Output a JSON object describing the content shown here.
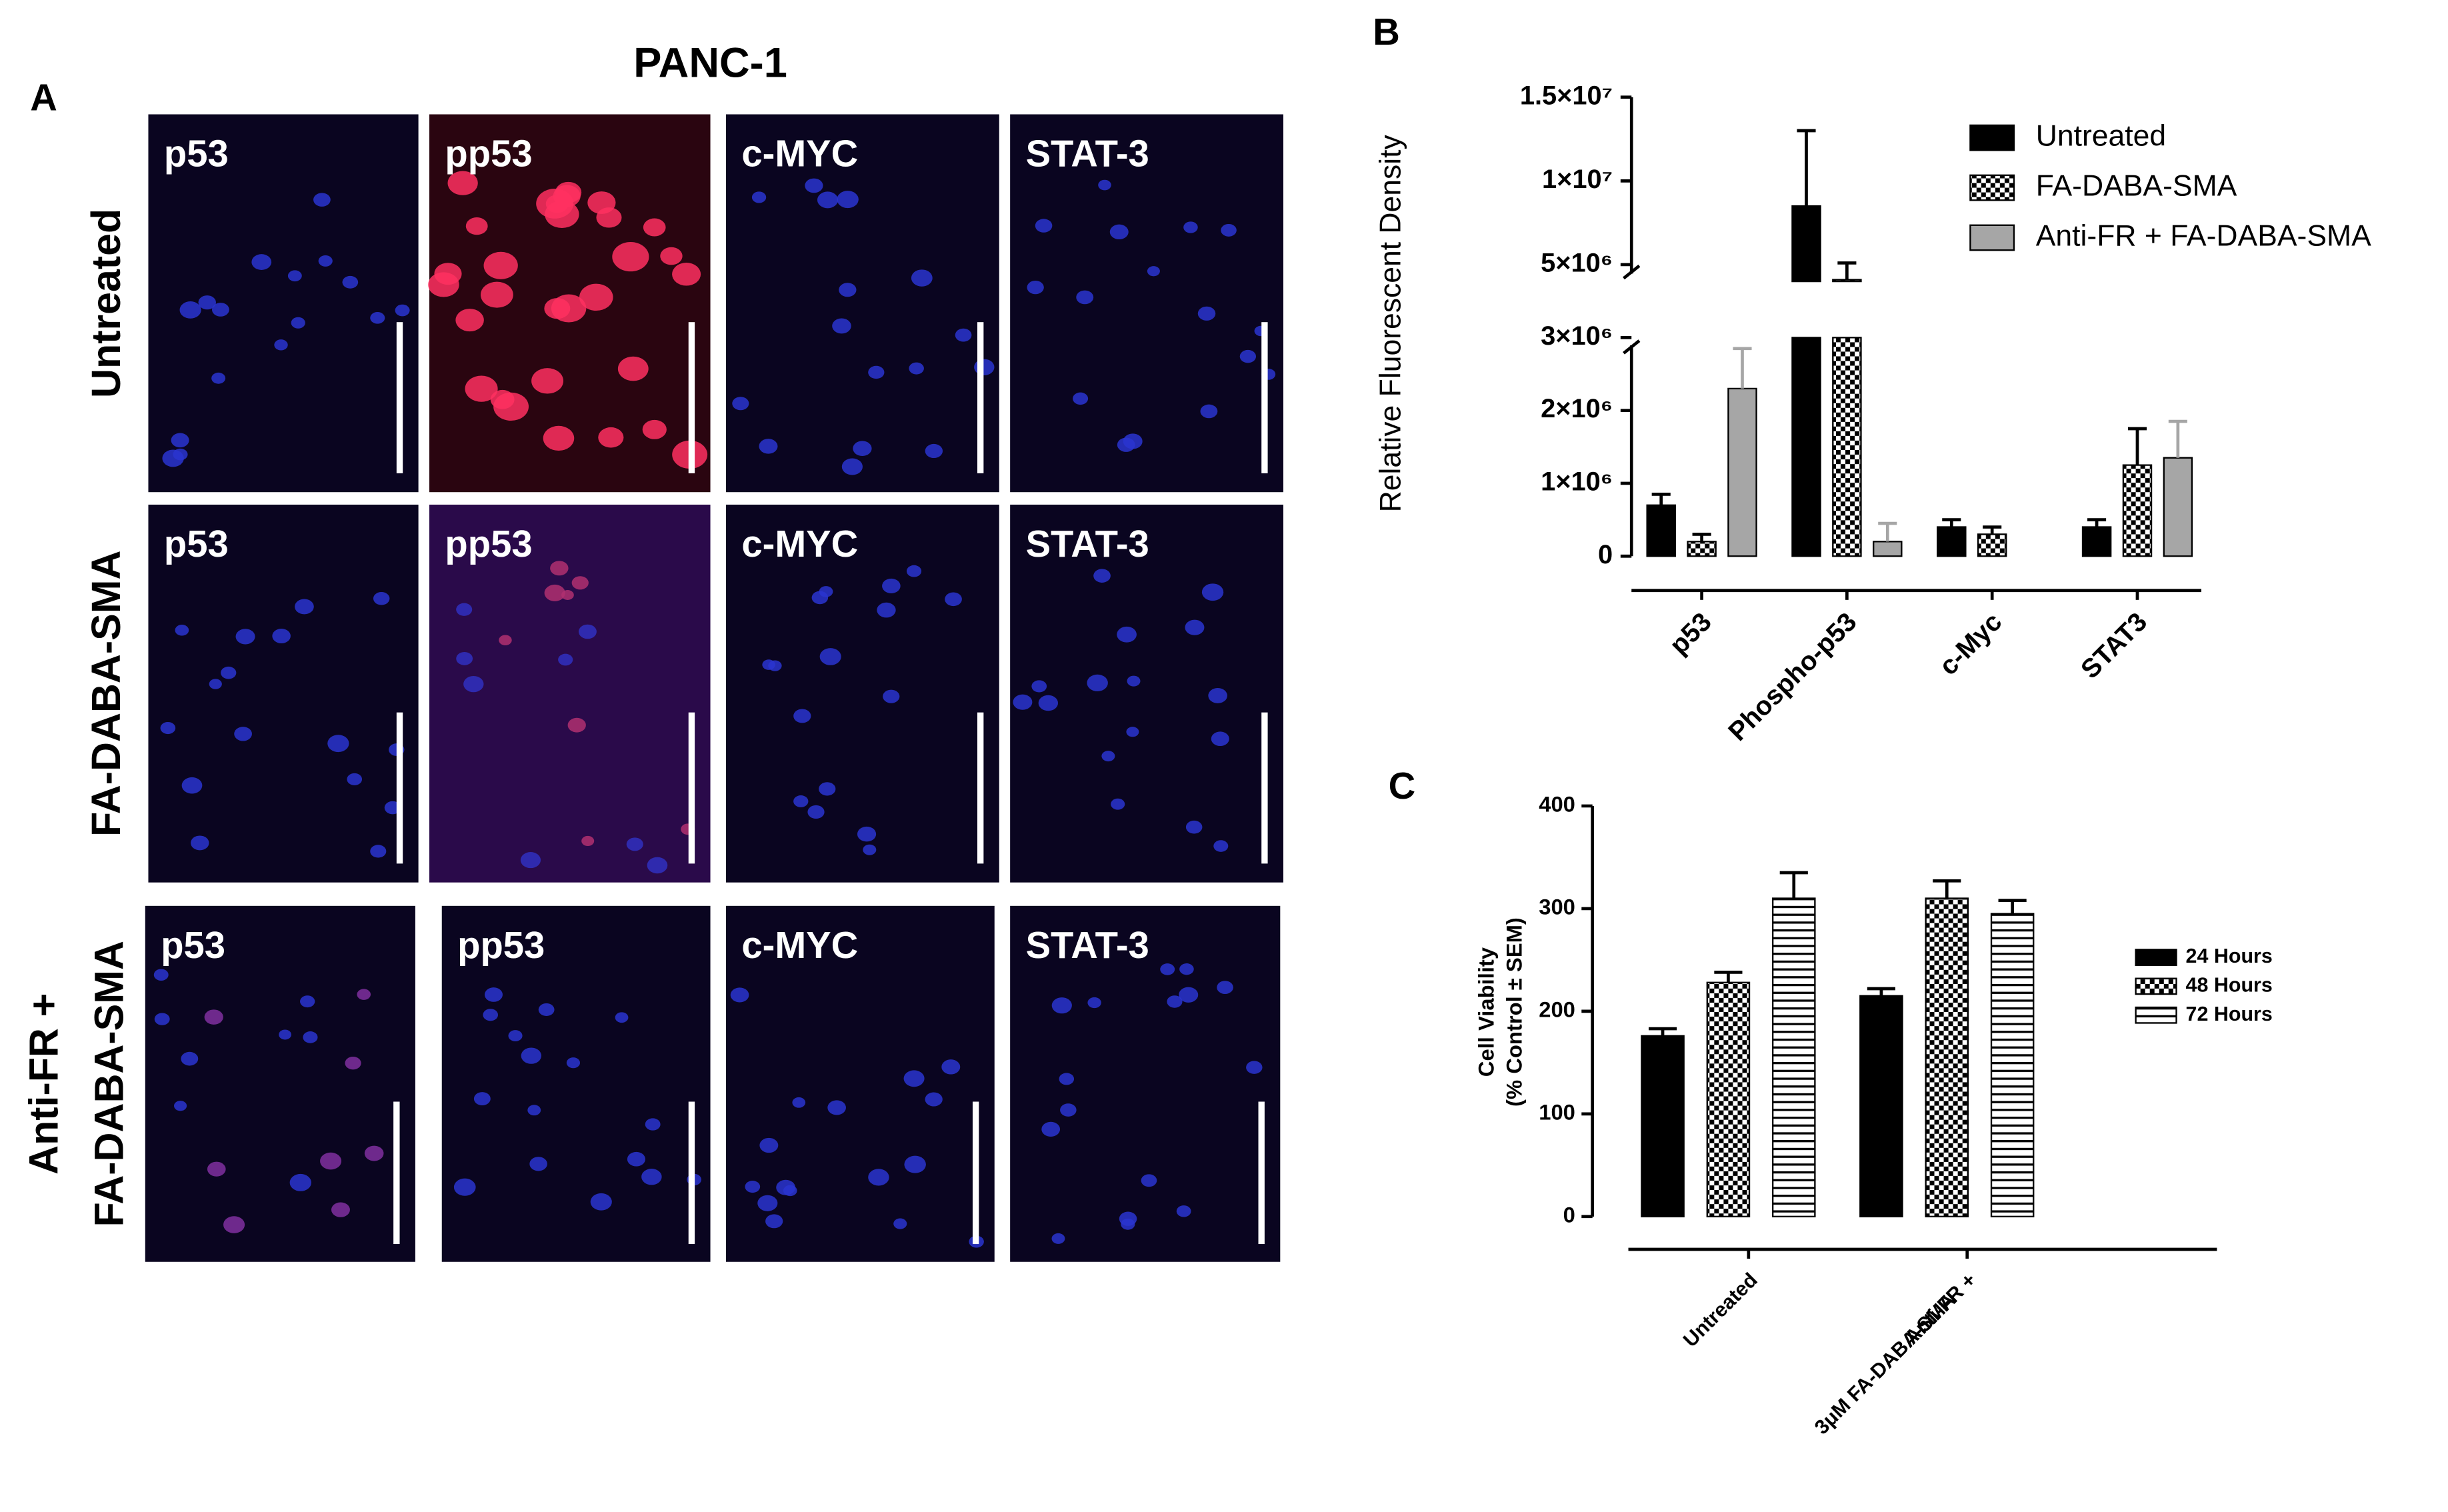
{
  "panel_a": {
    "panel_label": "A",
    "title": "PANC-1",
    "rows": [
      {
        "label": [
          "Untreated"
        ],
        "tiles": [
          "p53",
          "pp53",
          "c-MYC",
          "STAT-3"
        ]
      },
      {
        "label": [
          "FA-DABA-SMA"
        ],
        "tiles": [
          "p53",
          "pp53",
          "c-MYC",
          "STAT-3"
        ]
      },
      {
        "label": [
          "Anti-FR +",
          "FA-DABA-SMA"
        ],
        "tiles": [
          "p53",
          "pp53",
          "c-MYC",
          "STAT-3"
        ]
      }
    ]
  },
  "chart_data": [
    {
      "type": "bar",
      "panel_label": "B",
      "ylabel": "Relative Fluorescent Density",
      "categories": [
        "p53",
        "Phospho-p53",
        "c-Myc",
        "STAT3"
      ],
      "series": [
        {
          "name": "Untreated",
          "color": "#000000",
          "pattern": "solid",
          "values": [
            700000,
            8500000,
            400000,
            400000
          ],
          "errors": [
            150000,
            4500000,
            100000,
            100000
          ]
        },
        {
          "name": "FA-DABA-SMA",
          "color": "#000000",
          "pattern": "checker",
          "values": [
            200000,
            4100000,
            300000,
            1250000
          ],
          "errors": [
            100000,
            1000000,
            100000,
            500000
          ]
        },
        {
          "name": "Anti-FR + FA-DABA-SMA",
          "color": "#a6a6a6",
          "pattern": "solid",
          "values": [
            2300000,
            200000,
            null,
            1350000
          ],
          "errors": [
            550000,
            250000,
            null,
            500000
          ]
        }
      ],
      "ylim": [
        0,
        15000000
      ],
      "axis_break": [
        3000000,
        4000000
      ],
      "yticks": [
        0,
        {
          "value": 1000000,
          "label": "1×10⁶"
        },
        {
          "value": 2000000,
          "label": "2×10⁶"
        },
        {
          "value": 3000000,
          "label": "3×10⁶"
        },
        {
          "value": 5000000,
          "label": "5×10⁶"
        },
        {
          "value": 10000000,
          "label": "1×10⁷"
        },
        {
          "value": 15000000,
          "label": "1.5×10⁷"
        }
      ],
      "legend": "upper right",
      "grid": false
    },
    {
      "type": "bar",
      "panel_label": "C",
      "ylabel": [
        "Cell Viability",
        "(% Control ± SEM)"
      ],
      "categories": [
        [
          "Untreated"
        ],
        [
          "Anti-FR +",
          "3μM FA-DABA-SMA"
        ]
      ],
      "series": [
        {
          "name": "24 Hours",
          "color": "#000000",
          "pattern": "solid",
          "values": [
            176,
            215
          ],
          "errors": [
            7,
            7
          ]
        },
        {
          "name": "48 Hours",
          "color": "#000000",
          "pattern": "checker",
          "values": [
            228,
            310
          ],
          "errors": [
            10,
            17
          ]
        },
        {
          "name": "72 Hours",
          "color": "#000000",
          "pattern": "hstripes",
          "values": [
            310,
            295
          ],
          "errors": [
            25,
            13
          ]
        }
      ],
      "ylim": [
        0,
        400
      ],
      "yticks": [
        0,
        100,
        200,
        300,
        400
      ],
      "legend": "right",
      "grid": false
    }
  ]
}
